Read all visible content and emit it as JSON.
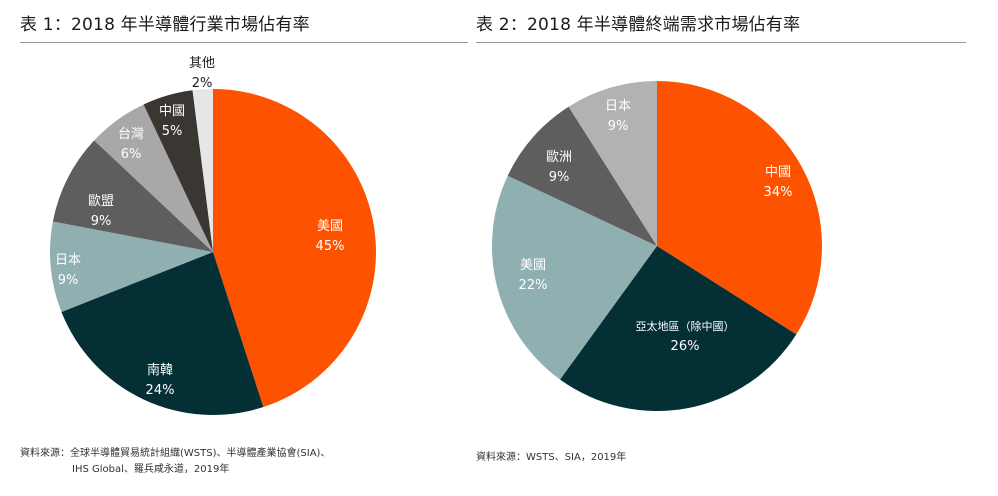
{
  "chart_data": [
    {
      "type": "pie",
      "title": "表 1：2018 年半導體行業市場佔有率",
      "slices": [
        {
          "label": "美國",
          "value": 45,
          "display": "45%",
          "color": "#fd5300",
          "text_color": "#ffffff"
        },
        {
          "label": "南韓",
          "value": 24,
          "display": "24%",
          "color": "#032f35",
          "text_color": "#ffffff"
        },
        {
          "label": "日本",
          "value": 9,
          "display": "9%",
          "color": "#90afb0",
          "text_color": "#ffffff"
        },
        {
          "label": "歐盟",
          "value": 9,
          "display": "9%",
          "color": "#5e5e5e",
          "text_color": "#ffffff"
        },
        {
          "label": "台灣",
          "value": 6,
          "display": "6%",
          "color": "#a8a8a8",
          "text_color": "#ffffff"
        },
        {
          "label": "中國",
          "value": 5,
          "display": "5%",
          "color": "#3a3632",
          "text_color": "#ffffff"
        },
        {
          "label": "其他",
          "value": 2,
          "display": "2%",
          "color": "#e6e6e6",
          "text_color": "#1a1a1a"
        }
      ],
      "source_lines": [
        "資料來源：全球半導體貿易統計組織(WSTS)、半導體產業協會(SIA)、",
        "IHS Global、羅兵咸永道，2019年"
      ]
    },
    {
      "type": "pie",
      "title": "表 2：2018 年半導體終端需求市場佔有率",
      "slices": [
        {
          "label": "中國",
          "value": 34,
          "display": "34%",
          "color": "#fd5300",
          "text_color": "#ffffff"
        },
        {
          "label": "亞太地區（除中國）",
          "value": 26,
          "display": "26%",
          "color": "#032f35",
          "text_color": "#ffffff"
        },
        {
          "label": "美國",
          "value": 22,
          "display": "22%",
          "color": "#90afb0",
          "text_color": "#ffffff"
        },
        {
          "label": "歐洲",
          "value": 9,
          "display": "9%",
          "color": "#5e5e5e",
          "text_color": "#ffffff"
        },
        {
          "label": "日本",
          "value": 9,
          "display": "9%",
          "color": "#b2b2b2",
          "text_color": "#ffffff"
        }
      ],
      "source_lines": [
        "資料來源：WSTS、SIA，2019年"
      ]
    }
  ]
}
